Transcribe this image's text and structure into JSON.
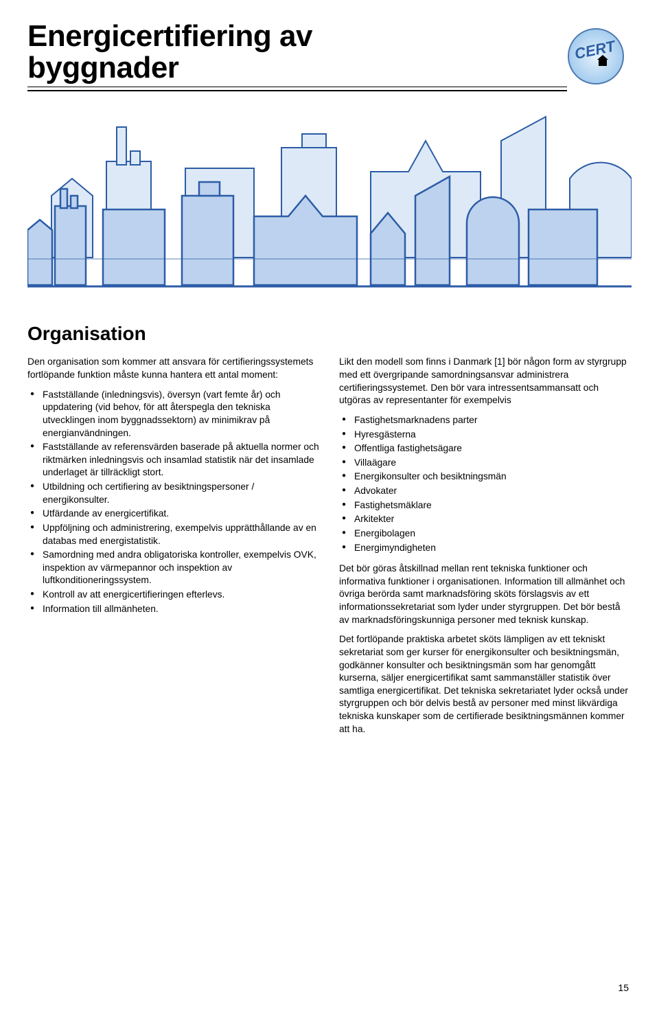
{
  "header": {
    "title_line1": "Energicertifiering av",
    "title_line2": "byggnader",
    "badge_text": "CERT"
  },
  "badge": {
    "circle_fill": "#bcdcf5",
    "circle_stroke": "#4f7ab0",
    "text_color": "#2d5fa3",
    "house_color": "#000000"
  },
  "skyline": {
    "fill": "#bcd2ee",
    "stroke": "#2c5ca7",
    "background": "#ffffff"
  },
  "section": {
    "title": "Organisation",
    "intro": "Den organisation som kommer att ansvara för certifieringssystemets fortlöpande funktion måste kunna hantera ett antal moment:",
    "left_bullets": [
      "Fastställande (inledningsvis), översyn (vart femte år) och uppdatering (vid behov, för att återspegla den tekniska utvecklingen inom byggnadssektorn) av minimikrav på energianvändningen.",
      "Fastställande av referensvärden baserade på aktuella normer och riktmärken inledningsvis och insamlad statistik när det insamlade underlaget är tillräckligt stort.",
      "Utbildning och certifiering av besiktningspersoner / energikonsulter.",
      "Utfärdande av energicertifikat.",
      "Uppföljning och administrering, exempelvis upprätthållande av en databas med energistatistik.",
      "Samordning med andra obligatoriska kontroller, exempelvis OVK, inspektion av värmepannor och inspektion av luftkonditioneringssystem.",
      "Kontroll av att energicertifieringen efterlevs.",
      "Information till allmänheten."
    ],
    "right_intro": "Likt den modell som finns i Danmark [1] bör någon form av styrgrupp med ett övergripande samordningsansvar administrera certifieringssystemet. Den bör vara intressentsammansatt och utgöras av representanter för exempelvis",
    "right_bullets": [
      "Fastighetsmarknadens parter",
      "Hyresgästerna",
      "Offentliga fastighetsägare",
      "Villaägare",
      "Energikonsulter och besiktningsmän",
      "Advokater",
      "Fastighetsmäklare",
      "Arkitekter",
      "Energibolagen",
      "Energimyndigheten"
    ],
    "right_p2": "Det bör göras åtskillnad mellan rent tekniska funktioner och informativa funktioner i organisationen. Information till allmänhet och övriga berörda samt marknadsföring sköts förslagsvis av ett informationssekretariat som lyder under styrgruppen. Det bör bestå av marknadsföringskunniga personer med teknisk kunskap.",
    "right_p3": "Det fortlöpande praktiska arbetet sköts lämpligen av ett tekniskt sekretariat som ger kurser för energikonsulter och besiktningsmän, godkänner konsulter och besiktningsmän som har genomgått kurserna, säljer energicertifikat samt sammanställer statistik över samtliga energicertifikat. Det tekniska sekretariatet lyder också under styrgruppen och bör delvis bestå av personer med minst likvärdiga tekniska kunskaper som de certifierade besiktningsmännen kommer att ha."
  },
  "page_number": "15"
}
